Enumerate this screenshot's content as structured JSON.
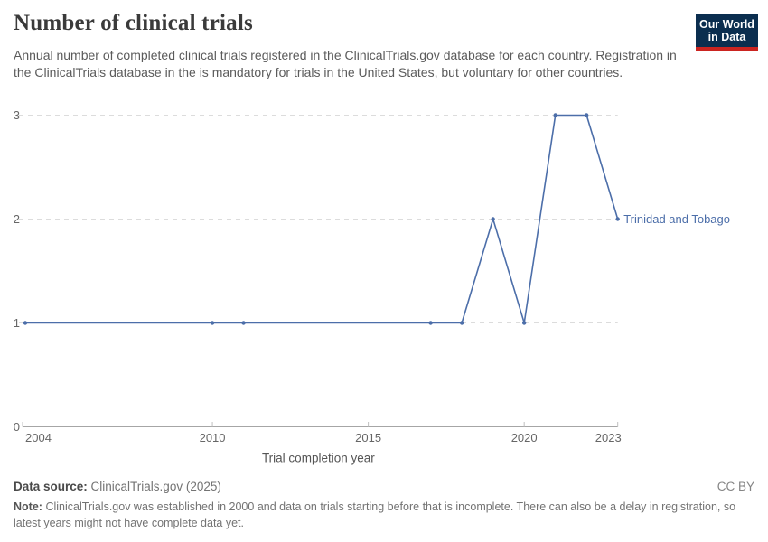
{
  "header": {
    "title": "Number of clinical trials",
    "subtitle": "Annual number of completed clinical trials registered in the ClinicalTrials.gov database for each country. Registration in the ClinicalTrials database in the is mandatory for trials in the United States, but voluntary for other countries.",
    "logo": {
      "line1": "Our World",
      "line2": "in Data",
      "bg_color": "#0b2e4f",
      "bar_color": "#cb2420"
    }
  },
  "chart_data": {
    "type": "line",
    "title": "Number of clinical trials",
    "xlabel": "Trial completion year",
    "ylabel": "",
    "x": [
      2004,
      2010,
      2011,
      2017,
      2018,
      2019,
      2020,
      2021,
      2022,
      2023
    ],
    "series": [
      {
        "name": "Trinidad and Tobago",
        "values": [
          1,
          1,
          1,
          1,
          1,
          2,
          1,
          3,
          3,
          2
        ],
        "color": "#4C6EA9"
      }
    ],
    "xlim": [
      2004,
      2023
    ],
    "ylim": [
      0,
      3
    ],
    "yticks": [
      0,
      1,
      2,
      3
    ],
    "xticks": [
      2004,
      2010,
      2015,
      2020,
      2023
    ],
    "grid": "horizontal-dashed",
    "legend_position": "line-end-label",
    "grid_color": "#dcdcdc",
    "axis_color": "#a6a6a6",
    "tick_color": "#bfbfbf",
    "tick_label_color": "#666666",
    "axis_title_color": "#555555"
  },
  "footer": {
    "datasource_label": "Data source:",
    "datasource_value": "ClinicalTrials.gov (2025)",
    "license": "CC BY",
    "note_label": "Note:",
    "note_value": "ClinicalTrials.gov was established in 2000 and data on trials starting before that is incomplete. There can also be a delay in registration, so latest years might not have complete data yet."
  }
}
